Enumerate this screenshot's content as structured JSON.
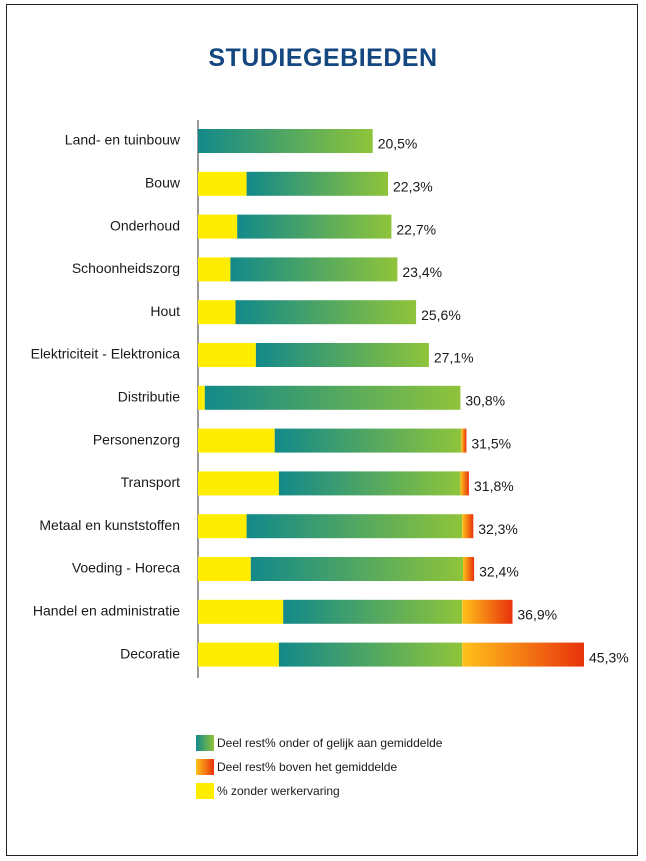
{
  "chart_data": {
    "type": "bar",
    "orientation": "horizontal",
    "stacked": true,
    "title": "STUDIEGEBIEDEN",
    "categories": [
      "Land- en tuinbouw",
      "Bouw",
      "Onderhoud",
      "Schoonheidszorg",
      "Hout",
      "Elektriciteit - Elektronica",
      "Distributie",
      "Personenzorg",
      "Transport",
      "Metaal en kunststoffen",
      "Voeding - Horeca",
      "Handel en administratie",
      "Decoratie"
    ],
    "totals": [
      20.5,
      22.3,
      22.7,
      23.4,
      25.6,
      27.1,
      30.8,
      31.5,
      31.8,
      32.3,
      32.4,
      36.9,
      45.3
    ],
    "total_labels": [
      "20,5%",
      "22,3%",
      "22,7%",
      "23,4%",
      "25,6%",
      "27,1%",
      "30,8%",
      "31,5%",
      "31,8%",
      "32,3%",
      "32,4%",
      "36,9%",
      "45,3%"
    ],
    "series": [
      {
        "name": "% zonder werkervaring",
        "color": "#ffed00",
        "values": [
          0,
          5.7,
          4.6,
          3.8,
          4.4,
          6.8,
          0.8,
          9.0,
          9.5,
          5.7,
          6.2,
          10.0,
          9.5
        ]
      },
      {
        "name": "Deel rest% onder of gelijk aan gemiddelde",
        "color_start": "#12898a",
        "color_end": "#8fc43a",
        "values": [
          20.5,
          16.6,
          18.1,
          19.6,
          21.2,
          20.3,
          30.0,
          21.9,
          21.3,
          25.3,
          24.9,
          21.0,
          21.5
        ]
      },
      {
        "name": "Deel rest% boven het gemiddelde",
        "color_start": "#ffc21a",
        "color_end": "#e8320c",
        "values": [
          0,
          0,
          0,
          0,
          0,
          0,
          0,
          0.6,
          1.0,
          1.3,
          1.3,
          5.9,
          14.3
        ]
      }
    ],
    "xlim": [
      0,
      45.3
    ],
    "grid": false,
    "legend": "bottom"
  }
}
